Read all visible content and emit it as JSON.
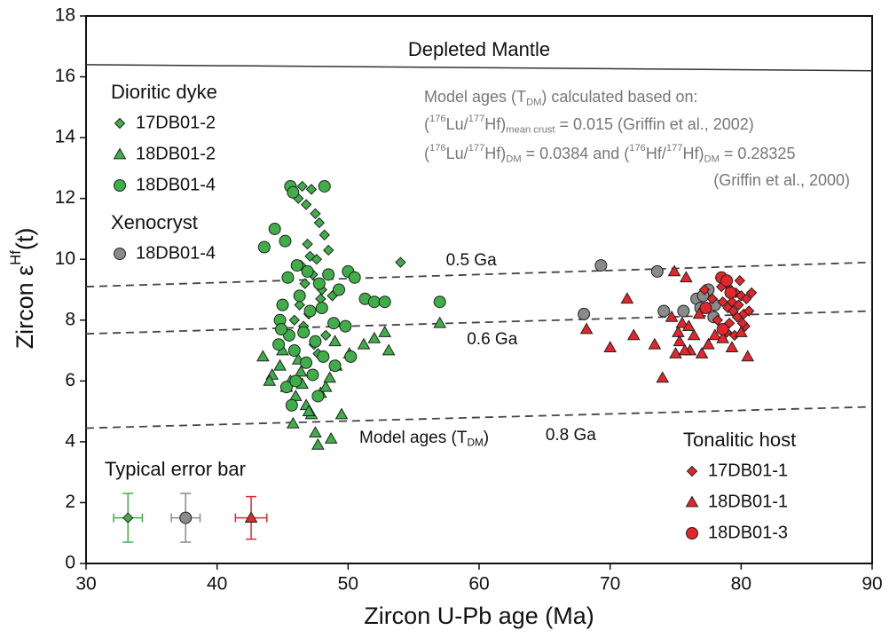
{
  "chart_data": {
    "type": "scatter",
    "x_label": "Zircon U-Pb age (Ma)",
    "y_label": [
      {
        "text": "Zircon ε"
      },
      {
        "text": "Hf",
        "sup": true
      },
      {
        "text": "(t)"
      }
    ],
    "xlim": [
      30,
      90
    ],
    "xticks": [
      30,
      40,
      50,
      60,
      70,
      80,
      90
    ],
    "ylim": [
      0,
      18
    ],
    "yticks": [
      0,
      2,
      4,
      6,
      8,
      10,
      12,
      14,
      16,
      18
    ],
    "legend_groups": [
      {
        "title": "Dioritic dyke",
        "series": [
          0,
          1,
          2
        ]
      },
      {
        "title": "Xenocryst",
        "series": [
          3
        ]
      },
      {
        "title": "Tonalitic host",
        "series": [
          4,
          5,
          6
        ]
      }
    ],
    "series": [
      {
        "name": "17DB01-2",
        "marker": "diamond",
        "color": "#3fae49",
        "x": [
          46.5,
          47.2,
          46.8,
          47.5,
          46.2,
          47.8,
          48.2,
          46.9,
          47.1,
          47.6,
          46.4,
          48.5,
          47.3,
          46.7,
          48.0,
          47.9,
          46.3,
          48.8,
          47.0,
          46.6,
          48.3,
          47.4,
          45.9,
          54.0,
          47.7
        ],
        "values": [
          12.4,
          12.3,
          11.8,
          11.5,
          12.0,
          11.2,
          10.8,
          10.5,
          10.1,
          10.0,
          9.8,
          10.3,
          9.5,
          9.2,
          9.0,
          8.7,
          8.5,
          8.8,
          8.2,
          7.8,
          7.5,
          7.2,
          8.0,
          9.9,
          6.9
        ]
      },
      {
        "name": "18DB01-2",
        "marker": "triangle",
        "color": "#3fae49",
        "x": [
          43.5,
          44.2,
          44.8,
          45.3,
          45.6,
          46.0,
          46.4,
          46.8,
          47.2,
          47.5,
          47.9,
          48.3,
          48.7,
          49.1,
          49.5,
          50.1,
          51.2,
          52.0,
          52.8,
          53.1,
          57.0,
          44.0,
          45.0,
          46.2,
          47.0,
          47.7,
          48.6,
          49.0,
          46.5,
          45.8
        ],
        "values": [
          6.8,
          6.2,
          6.5,
          5.8,
          6.0,
          5.5,
          6.3,
          5.2,
          4.9,
          4.3,
          5.6,
          5.8,
          4.1,
          6.5,
          4.9,
          6.9,
          7.2,
          7.4,
          7.6,
          7.0,
          7.9,
          6.0,
          7.0,
          6.7,
          5.0,
          3.9,
          6.1,
          7.3,
          5.9,
          4.6
        ]
      },
      {
        "name": "18DB01-4",
        "marker": "circle",
        "color": "#3fae49",
        "x": [
          45.6,
          45.8,
          48.2,
          44.4,
          43.6,
          45.2,
          46.1,
          45.4,
          46.9,
          47.8,
          48.5,
          49.3,
          50.0,
          50.5,
          51.3,
          52.0,
          52.8,
          57.0,
          45.0,
          44.8,
          46.3,
          47.1,
          48.0,
          48.9,
          49.8,
          45.5,
          46.6,
          47.5,
          44.7,
          45.9,
          46.8,
          48.1,
          47.3,
          45.3,
          49.0,
          50.2,
          46.0,
          47.7,
          45.7,
          44.9
        ],
        "values": [
          12.4,
          12.2,
          12.4,
          11.0,
          10.4,
          10.6,
          9.8,
          9.4,
          9.6,
          9.2,
          9.5,
          9.0,
          9.6,
          9.4,
          8.7,
          8.6,
          8.6,
          8.6,
          8.5,
          8.0,
          8.8,
          8.3,
          8.4,
          7.9,
          7.8,
          7.5,
          7.6,
          7.3,
          7.2,
          7.0,
          6.6,
          6.8,
          6.2,
          5.8,
          6.5,
          6.8,
          6.0,
          5.5,
          5.2,
          7.7
        ]
      },
      {
        "name": "18DB01-4",
        "marker": "circle",
        "color": "#8a8a8a",
        "x": [
          68.0,
          69.3,
          73.6,
          74.1,
          75.6,
          76.6,
          77.5,
          77.1,
          78.0,
          77.9,
          76.9
        ],
        "values": [
          8.2,
          9.8,
          9.6,
          8.3,
          8.3,
          8.7,
          9.0,
          8.8,
          8.5,
          8.1,
          8.4
        ]
      },
      {
        "name": "17DB01-1",
        "marker": "diamond",
        "color": "#e3262b",
        "x": [
          78.4,
          78.8,
          79.2,
          79.6,
          80.0,
          80.4,
          80.8,
          78.6,
          79.0,
          79.4,
          79.8,
          80.2,
          78.2,
          79.1,
          79.7,
          80.3,
          78.9,
          79.5,
          80.1,
          77.8,
          78.5,
          79.3,
          80.6,
          77.2,
          79.9
        ],
        "values": [
          9.4,
          9.2,
          9.0,
          8.9,
          8.8,
          8.7,
          8.9,
          8.6,
          8.4,
          8.3,
          8.5,
          8.2,
          8.0,
          7.9,
          8.1,
          7.8,
          7.6,
          7.5,
          7.9,
          8.7,
          9.1,
          8.6,
          8.3,
          9.0,
          9.3
        ]
      },
      {
        "name": "18DB01-1",
        "marker": "triangle",
        "color": "#e3262b",
        "x": [
          68.2,
          70.0,
          71.3,
          71.8,
          73.4,
          74.0,
          74.9,
          75.2,
          75.5,
          75.8,
          76.1,
          76.4,
          76.8,
          75.0,
          75.3,
          76.0,
          77.0,
          77.5,
          78.0,
          78.6,
          79.3,
          80.0,
          80.5,
          74.7,
          75.7
        ],
        "values": [
          7.7,
          7.1,
          8.7,
          7.5,
          7.2,
          6.1,
          9.6,
          7.6,
          7.9,
          9.4,
          7.0,
          7.5,
          8.2,
          6.9,
          7.3,
          7.8,
          6.9,
          7.2,
          7.5,
          7.4,
          7.1,
          7.6,
          6.8,
          8.1,
          7.0
        ]
      },
      {
        "name": "18DB01-3",
        "marker": "circle",
        "color": "#e3262b",
        "x": [
          78.5,
          78.9,
          77.3,
          78.6,
          79.2
        ],
        "values": [
          9.4,
          9.3,
          8.4,
          7.7,
          8.9
        ]
      }
    ],
    "reference_lines": [
      {
        "label": "Depleted Mantle",
        "x": [
          30,
          90
        ],
        "values": [
          16.4,
          16.2
        ],
        "dashed": false
      },
      {
        "label": "0.5 Ga",
        "x": [
          30,
          90
        ],
        "values": [
          9.1,
          9.9
        ],
        "dashed": true
      },
      {
        "label": "0.6 Ga",
        "x": [
          30,
          90
        ],
        "values": [
          7.55,
          8.3
        ],
        "dashed": true
      },
      {
        "label": "0.8 Ga",
        "x": [
          30,
          90
        ],
        "values": [
          4.45,
          5.15
        ],
        "dashed": true
      }
    ],
    "error_bar_title": "Typical error bar",
    "error_bars": [
      {
        "x": 33.2,
        "value": 1.5,
        "xerr": 1.1,
        "yerr": 0.8,
        "series": 0
      },
      {
        "x": 37.6,
        "value": 1.5,
        "xerr": 1.1,
        "yerr": 0.8,
        "series": 3
      },
      {
        "x": 42.6,
        "value": 1.5,
        "xerr": 1.2,
        "yerr": 0.7,
        "series": 5
      }
    ],
    "annotations": [
      [
        {
          "text": "Model ages (T"
        },
        {
          "text": "DM",
          "sub": true
        },
        {
          "text": ") calculated based on:"
        }
      ],
      [
        {
          "text": "("
        },
        {
          "text": "176",
          "sup": true
        },
        {
          "text": "Lu/"
        },
        {
          "text": "177",
          "sup": true
        },
        {
          "text": "Hf)"
        },
        {
          "text": "mean crust",
          "sub": true
        },
        {
          "text": " = 0.015 (Griffin et al., 2002)"
        }
      ],
      [
        {
          "text": "("
        },
        {
          "text": "176",
          "sup": true
        },
        {
          "text": "Lu/"
        },
        {
          "text": "177",
          "sup": true
        },
        {
          "text": "Hf)"
        },
        {
          "text": "DM",
          "sub": true
        },
        {
          "text": " = 0.0384 and ("
        },
        {
          "text": "176",
          "sup": true
        },
        {
          "text": "Hf/"
        },
        {
          "text": "177",
          "sup": true
        },
        {
          "text": "Hf)"
        },
        {
          "text": "DM",
          "sub": true
        },
        {
          "text": " = 0.28325"
        }
      ],
      [
        {
          "text": "(Griffin et al., 2000)"
        }
      ],
      [
        {
          "text": "Model ages (T"
        },
        {
          "text": "DM",
          "sub": true
        },
        {
          "text": ")"
        }
      ]
    ]
  }
}
